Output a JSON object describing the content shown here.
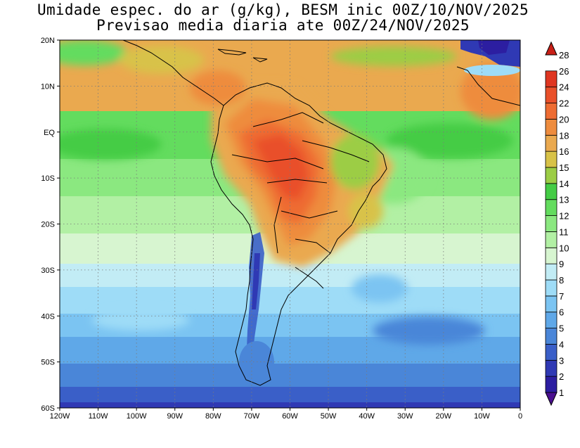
{
  "title": {
    "line1": "Umidade espec. do ar (g/kg), BESM inic 00Z/10/NOV/2025",
    "line2": "Previsao media diaria ate 00Z/24/NOV/2025"
  },
  "map": {
    "lon_range": [
      -120,
      0
    ],
    "lat_range": [
      -60,
      20
    ],
    "lon_labels": [
      "120W",
      "110W",
      "100W",
      "90W",
      "80W",
      "70W",
      "60W",
      "50W",
      "40W",
      "30W",
      "20W",
      "10W",
      "0"
    ],
    "lat_labels": [
      "20N",
      "10N",
      "EQ",
      "10S",
      "20S",
      "30S",
      "40S",
      "50S",
      "60S"
    ],
    "grid": "dotted"
  },
  "colorbar": {
    "labels": [
      "1",
      "2",
      "3",
      "4",
      "5",
      "6",
      "7",
      "8",
      "9",
      "10",
      "11",
      "12",
      "13",
      "14",
      "15",
      "16",
      "18",
      "20",
      "22",
      "24",
      "26",
      "28"
    ],
    "colors": [
      "#4a0f8f",
      "#2c1ea1",
      "#2f39b4",
      "#3a5fc8",
      "#4a86d8",
      "#5fa8e8",
      "#7bc4f2",
      "#9edcf7",
      "#c2ecf5",
      "#d7f5d0",
      "#b2f0a4",
      "#8be880",
      "#63dc5e",
      "#44cc45",
      "#9ccd45",
      "#d8c248",
      "#eaa94f",
      "#ee8c3e",
      "#ee6c32",
      "#e9502a",
      "#df3621",
      "#c81f17"
    ]
  }
}
